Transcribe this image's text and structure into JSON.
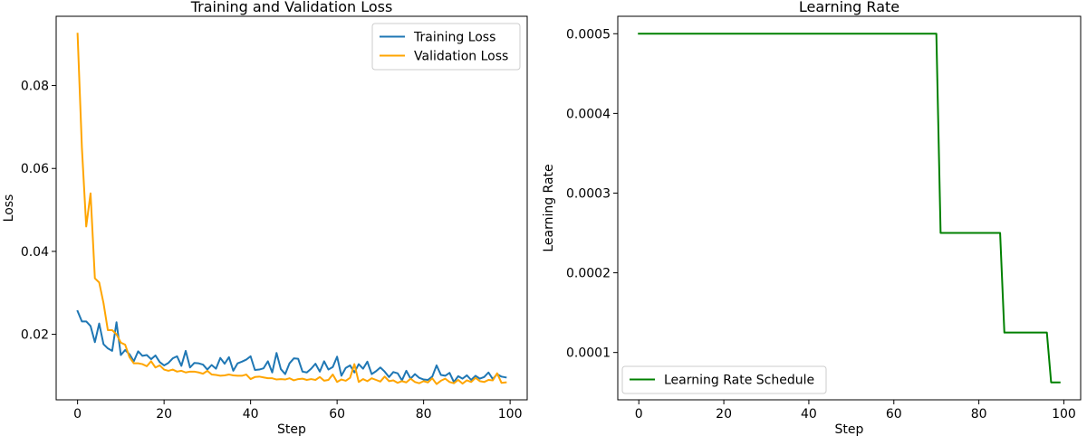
{
  "chart_data": [
    {
      "type": "line",
      "title": "Training and Validation Loss",
      "xlabel": "Step",
      "ylabel": "Loss",
      "xlim": [
        -4.95,
        103.95
      ],
      "ylim": [
        0.0042,
        0.0967
      ],
      "xticks": [
        0,
        20,
        40,
        60,
        80,
        100
      ],
      "yticks": [
        0.02,
        0.04,
        0.06,
        0.08
      ],
      "xtick_labels": [
        "0",
        "20",
        "40",
        "60",
        "80",
        "100"
      ],
      "ytick_labels": [
        "0.02",
        "0.04",
        "0.06",
        "0.08"
      ],
      "legend": "top-right",
      "grid": false,
      "series": [
        {
          "name": "Training Loss",
          "color": "#1f77b4",
          "x": [
            0,
            1,
            2,
            3,
            4,
            5,
            6,
            7,
            8,
            9,
            10,
            11,
            12,
            13,
            14,
            15,
            16,
            17,
            18,
            19,
            20,
            21,
            22,
            23,
            24,
            25,
            26,
            27,
            28,
            29,
            30,
            31,
            32,
            33,
            34,
            35,
            36,
            37,
            38,
            39,
            40,
            41,
            42,
            43,
            44,
            45,
            46,
            47,
            48,
            49,
            50,
            51,
            52,
            53,
            54,
            55,
            56,
            57,
            58,
            59,
            60,
            61,
            62,
            63,
            64,
            65,
            66,
            67,
            68,
            69,
            70,
            71,
            72,
            73,
            74,
            75,
            76,
            77,
            78,
            79,
            80,
            81,
            82,
            83,
            84,
            85,
            86,
            87,
            88,
            89,
            90,
            91,
            92,
            93,
            94,
            95,
            96,
            97,
            98,
            99
          ],
          "values": [
            0.0256,
            0.0231,
            0.0231,
            0.022,
            0.0181,
            0.0226,
            0.0176,
            0.0166,
            0.016,
            0.0229,
            0.015,
            0.0162,
            0.0152,
            0.0135,
            0.0159,
            0.0148,
            0.015,
            0.014,
            0.0149,
            0.0133,
            0.0125,
            0.0131,
            0.0142,
            0.0147,
            0.0124,
            0.016,
            0.012,
            0.0131,
            0.013,
            0.0127,
            0.0115,
            0.0126,
            0.0117,
            0.0143,
            0.0129,
            0.0145,
            0.0112,
            0.013,
            0.0134,
            0.0139,
            0.0147,
            0.0114,
            0.0115,
            0.0118,
            0.0135,
            0.0108,
            0.0155,
            0.0116,
            0.0104,
            0.013,
            0.0142,
            0.0141,
            0.011,
            0.0108,
            0.0117,
            0.0129,
            0.011,
            0.0135,
            0.0115,
            0.0121,
            0.0146,
            0.01,
            0.0119,
            0.0125,
            0.0108,
            0.0128,
            0.0117,
            0.0134,
            0.0104,
            0.0111,
            0.012,
            0.011,
            0.0097,
            0.0109,
            0.0106,
            0.0089,
            0.0112,
            0.0093,
            0.0104,
            0.0095,
            0.0091,
            0.009,
            0.0098,
            0.0125,
            0.0102,
            0.01,
            0.0107,
            0.0085,
            0.0099,
            0.0093,
            0.0101,
            0.009,
            0.01,
            0.0093,
            0.0097,
            0.0108,
            0.0092,
            0.0104,
            0.0098,
            0.0096
          ]
        },
        {
          "name": "Validation Loss",
          "color": "#ffa500",
          "x": [
            0,
            1,
            2,
            3,
            4,
            5,
            6,
            7,
            8,
            9,
            10,
            11,
            12,
            13,
            14,
            15,
            16,
            17,
            18,
            19,
            20,
            21,
            22,
            23,
            24,
            25,
            26,
            27,
            28,
            29,
            30,
            31,
            32,
            33,
            34,
            35,
            36,
            37,
            38,
            39,
            40,
            41,
            42,
            43,
            44,
            45,
            46,
            47,
            48,
            49,
            50,
            51,
            52,
            53,
            54,
            55,
            56,
            57,
            58,
            59,
            60,
            61,
            62,
            63,
            64,
            65,
            66,
            67,
            68,
            69,
            70,
            71,
            72,
            73,
            74,
            75,
            76,
            77,
            78,
            79,
            80,
            81,
            82,
            83,
            84,
            85,
            86,
            87,
            88,
            89,
            90,
            91,
            92,
            93,
            94,
            95,
            96,
            97,
            98,
            99
          ],
          "values": [
            0.0925,
            0.065,
            0.046,
            0.054,
            0.0335,
            0.0325,
            0.0275,
            0.021,
            0.021,
            0.02,
            0.018,
            0.0175,
            0.0145,
            0.013,
            0.013,
            0.0128,
            0.0123,
            0.0135,
            0.012,
            0.0125,
            0.0115,
            0.0112,
            0.0115,
            0.011,
            0.0112,
            0.0108,
            0.011,
            0.011,
            0.0108,
            0.0105,
            0.0112,
            0.0103,
            0.0102,
            0.01,
            0.0101,
            0.0103,
            0.0101,
            0.01,
            0.01,
            0.0103,
            0.0092,
            0.0097,
            0.0098,
            0.0096,
            0.0094,
            0.0094,
            0.0091,
            0.0092,
            0.0091,
            0.0094,
            0.0089,
            0.0092,
            0.0093,
            0.009,
            0.0092,
            0.009,
            0.0097,
            0.0088,
            0.009,
            0.0103,
            0.0085,
            0.0091,
            0.0088,
            0.0095,
            0.0128,
            0.0085,
            0.0092,
            0.0087,
            0.0094,
            0.009,
            0.0086,
            0.0098,
            0.0087,
            0.0089,
            0.0083,
            0.0087,
            0.0084,
            0.0093,
            0.0085,
            0.0082,
            0.0087,
            0.0084,
            0.0094,
            0.008,
            0.0088,
            0.0093,
            0.0085,
            0.0082,
            0.009,
            0.0081,
            0.0089,
            0.0085,
            0.0095,
            0.0087,
            0.0085,
            0.009,
            0.0089,
            0.0106,
            0.0083,
            0.0084
          ]
        }
      ]
    },
    {
      "type": "line",
      "title": "Learning Rate",
      "xlabel": "Step",
      "ylabel": "Learning Rate",
      "xlim": [
        -4.95,
        103.95
      ],
      "ylim": [
        4.06e-05,
        0.0005219
      ],
      "xticks": [
        0,
        20,
        40,
        60,
        80,
        100
      ],
      "yticks": [
        0.0001,
        0.0002,
        0.0003,
        0.0004,
        0.0005
      ],
      "xtick_labels": [
        "0",
        "20",
        "40",
        "60",
        "80",
        "100"
      ],
      "ytick_labels": [
        "0.0001",
        "0.0002",
        "0.0003",
        "0.0004",
        "0.0005"
      ],
      "legend": "bottom-left",
      "grid": false,
      "series": [
        {
          "name": "Learning Rate Schedule",
          "color": "#008000",
          "x": [
            0,
            70,
            71,
            85,
            86,
            96,
            97,
            99
          ],
          "values": [
            0.0005,
            0.0005,
            0.00025,
            0.00025,
            0.000125,
            0.000125,
            6.25e-05,
            6.25e-05
          ]
        }
      ]
    }
  ]
}
